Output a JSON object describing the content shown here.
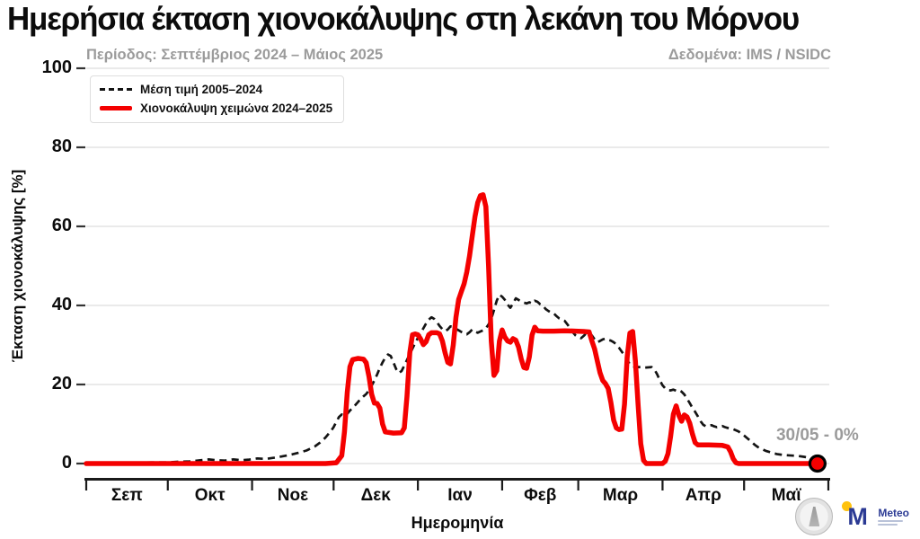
{
  "title": "Ημερήσια έκταση χιονοκάλυψης στη λεκάνη του Μόρνου",
  "subtitle": "Περίοδος: Σεπτέμβριος 2024 – Μάιος 2025",
  "source": "Δεδομένα: IMS / NSIDC",
  "colors": {
    "snow_line": "#f40000",
    "mean_line": "#141414",
    "grid": "#e4e4e4",
    "spine": "#1a1a1a",
    "muted_text": "#9b9b9b",
    "marker_fill": "#f40000",
    "marker_edge": "#000000"
  },
  "logos": {
    "seal_name": "university-seal",
    "meteo_name": "Meteo"
  },
  "chart_data": {
    "type": "line",
    "title": "Ημερήσια έκταση χιονοκάλυψης στη λεκάνη του Μόρνου",
    "xlabel": "Ημερομηνία",
    "ylabel": "Έκταση χιονοκάλυψης [%]",
    "ylim": [
      0,
      100
    ],
    "yticks": [
      0,
      20,
      40,
      60,
      80,
      100
    ],
    "grid": true,
    "legend_position": "upper left",
    "x_unit": "days from 1 Sep 2024",
    "x_months": [
      "Σεπ",
      "Οκτ",
      "Νοε",
      "Δεκ",
      "Ιαν",
      "Φεβ",
      "Μαρ",
      "Απρ",
      "Μαϊ"
    ],
    "month_boundaries_days": [
      0,
      30,
      61,
      91,
      122,
      153,
      181,
      212,
      242,
      273
    ],
    "annotation": {
      "label": "30/05 - 0%",
      "day": 269,
      "value": 0
    },
    "series": [
      {
        "name": "Μέση τιμή 2005–2024",
        "style": "dashed",
        "color": "#141414",
        "points": [
          [
            0,
            0.2
          ],
          [
            6,
            0.15
          ],
          [
            12,
            0.25
          ],
          [
            18,
            0.2
          ],
          [
            24,
            0.3
          ],
          [
            30,
            0.3
          ],
          [
            34,
            0.45
          ],
          [
            38,
            0.55
          ],
          [
            42,
            0.85
          ],
          [
            45,
            1.05
          ],
          [
            48,
            0.85
          ],
          [
            51,
            0.75
          ],
          [
            54,
            1.05
          ],
          [
            57,
            0.85
          ],
          [
            60,
            1.0
          ],
          [
            63,
            1.3
          ],
          [
            66,
            1.15
          ],
          [
            69,
            1.45
          ],
          [
            72,
            1.8
          ],
          [
            75,
            2.2
          ],
          [
            78,
            2.7
          ],
          [
            81,
            3.3
          ],
          [
            84,
            4.3
          ],
          [
            86,
            5.3
          ],
          [
            88,
            6.6
          ],
          [
            90,
            8.2
          ],
          [
            91,
            9.2
          ],
          [
            92,
            10.6
          ],
          [
            93,
            11.8
          ],
          [
            94,
            12.4
          ],
          [
            95,
            12.0
          ],
          [
            96,
            12.6
          ],
          [
            97,
            13.4
          ],
          [
            98,
            14.1
          ],
          [
            99,
            14.8
          ],
          [
            100,
            15.6
          ],
          [
            101,
            16.4
          ],
          [
            102,
            17.0
          ],
          [
            103,
            17.6
          ],
          [
            104,
            18.5
          ],
          [
            105,
            19.7
          ],
          [
            106,
            21.0
          ],
          [
            107,
            22.5
          ],
          [
            108,
            24.2
          ],
          [
            109,
            25.6
          ],
          [
            110,
            26.8
          ],
          [
            111,
            27.6
          ],
          [
            112,
            27.2
          ],
          [
            113,
            25.6
          ],
          [
            114,
            23.9
          ],
          [
            115,
            22.9
          ],
          [
            116,
            23.4
          ],
          [
            117,
            24.8
          ],
          [
            118,
            26.2
          ],
          [
            119,
            27.7
          ],
          [
            120,
            29.1
          ],
          [
            121,
            30.5
          ],
          [
            122,
            31.8
          ],
          [
            123,
            33.0
          ],
          [
            124,
            34.2
          ],
          [
            125,
            35.4
          ],
          [
            126,
            36.4
          ],
          [
            127,
            37.0
          ],
          [
            128,
            36.6
          ],
          [
            129,
            35.8
          ],
          [
            130,
            34.8
          ],
          [
            131,
            34.0
          ],
          [
            132,
            33.5
          ],
          [
            133,
            33.9
          ],
          [
            134,
            34.7
          ],
          [
            135,
            34.6
          ],
          [
            136,
            34.1
          ],
          [
            137,
            33.7
          ],
          [
            138,
            33.3
          ],
          [
            139,
            33.0
          ],
          [
            140,
            32.7
          ],
          [
            141,
            33.2
          ],
          [
            142,
            33.9
          ],
          [
            143,
            33.4
          ],
          [
            144,
            33.1
          ],
          [
            145,
            33.4
          ],
          [
            146,
            33.7
          ],
          [
            147,
            34.2
          ],
          [
            148,
            35.2
          ],
          [
            149,
            36.6
          ],
          [
            150,
            38.8
          ],
          [
            151,
            41.2
          ],
          [
            152,
            42.7
          ],
          [
            153,
            42.2
          ],
          [
            154,
            41.4
          ],
          [
            155,
            40.2
          ],
          [
            156,
            39.4
          ],
          [
            157,
            40.5
          ],
          [
            158,
            41.8
          ],
          [
            159,
            41.4
          ],
          [
            160,
            41.0
          ],
          [
            161,
            40.7
          ],
          [
            162,
            40.5
          ],
          [
            163,
            40.8
          ],
          [
            164,
            40.5
          ],
          [
            165,
            41.2
          ],
          [
            166,
            40.9
          ],
          [
            167,
            40.3
          ],
          [
            168,
            40.0
          ],
          [
            169,
            39.1
          ],
          [
            170,
            38.6
          ],
          [
            171,
            38.2
          ],
          [
            172,
            38.0
          ],
          [
            173,
            37.3
          ],
          [
            174,
            36.7
          ],
          [
            175,
            36.4
          ],
          [
            176,
            36.1
          ],
          [
            177,
            35.2
          ],
          [
            178,
            34.3
          ],
          [
            179,
            33.2
          ],
          [
            180,
            32.4
          ],
          [
            181,
            31.9
          ],
          [
            182,
            31.7
          ],
          [
            183,
            32.3
          ],
          [
            184,
            33.0
          ],
          [
            185,
            33.0
          ],
          [
            186,
            32.4
          ],
          [
            187,
            31.4
          ],
          [
            188,
            30.7
          ],
          [
            189,
            31.0
          ],
          [
            190,
            31.4
          ],
          [
            191,
            31.6
          ],
          [
            192,
            31.3
          ],
          [
            193,
            31.1
          ],
          [
            194,
            30.7
          ],
          [
            195,
            30.1
          ],
          [
            196,
            29.3
          ],
          [
            197,
            28.3
          ],
          [
            198,
            27.3
          ],
          [
            199,
            26.2
          ],
          [
            200,
            25.1
          ],
          [
            201,
            24.6
          ],
          [
            202,
            24.4
          ],
          [
            204,
            24.4
          ],
          [
            206,
            24.3
          ],
          [
            208,
            24.4
          ],
          [
            209,
            23.8
          ],
          [
            210,
            22.6
          ],
          [
            211,
            21.1
          ],
          [
            212,
            19.8
          ],
          [
            213,
            19.0
          ],
          [
            214,
            18.6
          ],
          [
            215,
            18.5
          ],
          [
            216,
            18.7
          ],
          [
            217,
            18.4
          ],
          [
            218,
            18.6
          ],
          [
            219,
            18.2
          ],
          [
            220,
            17.5
          ],
          [
            221,
            16.4
          ],
          [
            222,
            15.3
          ],
          [
            223,
            14.1
          ],
          [
            224,
            13.1
          ],
          [
            225,
            11.9
          ],
          [
            226,
            10.7
          ],
          [
            227,
            9.8
          ],
          [
            228,
            9.4
          ],
          [
            229,
            9.6
          ],
          [
            230,
            9.7
          ],
          [
            231,
            9.4
          ],
          [
            232,
            9.2
          ],
          [
            233,
            9.4
          ],
          [
            234,
            9.5
          ],
          [
            235,
            9.2
          ],
          [
            236,
            9.0
          ],
          [
            237,
            8.9
          ],
          [
            238,
            8.7
          ],
          [
            239,
            8.4
          ],
          [
            240,
            8.1
          ],
          [
            241,
            7.6
          ],
          [
            242,
            7.1
          ],
          [
            243,
            6.5
          ],
          [
            244,
            5.9
          ],
          [
            245,
            5.3
          ],
          [
            246,
            4.7
          ],
          [
            247,
            4.2
          ],
          [
            248,
            3.8
          ],
          [
            249,
            3.5
          ],
          [
            250,
            3.2
          ],
          [
            251,
            3.0
          ],
          [
            252,
            2.8
          ],
          [
            253,
            2.6
          ],
          [
            254,
            2.4
          ],
          [
            256,
            2.2
          ],
          [
            258,
            2.1
          ],
          [
            260,
            2.0
          ],
          [
            262,
            1.9
          ],
          [
            264,
            1.7
          ],
          [
            266,
            1.4
          ],
          [
            268,
            1.1
          ],
          [
            269,
            0.9
          ]
        ]
      },
      {
        "name": "Χιονοκάλυψη χειμώνα 2024–2025",
        "style": "solid",
        "color": "#f40000",
        "points": [
          [
            0,
            0
          ],
          [
            88,
            0
          ],
          [
            92,
            0.2
          ],
          [
            94,
            2
          ],
          [
            95,
            8
          ],
          [
            96,
            18
          ],
          [
            97,
            24.5
          ],
          [
            98,
            26.3
          ],
          [
            100,
            26.6
          ],
          [
            102,
            26.4
          ],
          [
            103,
            25.5
          ],
          [
            104,
            22
          ],
          [
            105,
            17.5
          ],
          [
            106,
            15.3
          ],
          [
            107,
            15.2
          ],
          [
            108,
            14
          ],
          [
            109,
            10
          ],
          [
            110,
            8.0
          ],
          [
            113,
            7.7
          ],
          [
            116,
            7.8
          ],
          [
            117,
            9
          ],
          [
            118,
            17
          ],
          [
            119,
            28
          ],
          [
            120,
            32.6
          ],
          [
            121,
            32.8
          ],
          [
            122,
            32.6
          ],
          [
            123,
            31.5
          ],
          [
            124,
            30.1
          ],
          [
            125,
            30.8
          ],
          [
            126,
            32.6
          ],
          [
            127,
            33.1
          ],
          [
            129,
            33.1
          ],
          [
            130,
            32.8
          ],
          [
            131,
            31
          ],
          [
            132,
            28
          ],
          [
            133,
            25.6
          ],
          [
            134,
            25.2
          ],
          [
            135,
            30
          ],
          [
            136,
            37
          ],
          [
            137,
            41.5
          ],
          [
            138,
            43.5
          ],
          [
            139,
            45.5
          ],
          [
            140,
            48.5
          ],
          [
            141,
            52.5
          ],
          [
            142,
            57.5
          ],
          [
            143,
            62.5
          ],
          [
            144,
            66
          ],
          [
            145,
            67.8
          ],
          [
            146,
            68
          ],
          [
            147,
            65
          ],
          [
            148,
            50
          ],
          [
            149,
            31
          ],
          [
            150,
            22.3
          ],
          [
            151,
            23.5
          ],
          [
            152,
            31
          ],
          [
            153,
            33.8
          ],
          [
            154,
            32
          ],
          [
            155,
            31
          ],
          [
            156,
            30.7
          ],
          [
            157,
            31.6
          ],
          [
            158,
            31.2
          ],
          [
            159,
            29.5
          ],
          [
            160,
            26.5
          ],
          [
            161,
            24.3
          ],
          [
            162,
            24.1
          ],
          [
            163,
            27
          ],
          [
            164,
            32.5
          ],
          [
            165,
            34.5
          ],
          [
            166,
            33.6
          ],
          [
            168,
            33.5
          ],
          [
            172,
            33.5
          ],
          [
            176,
            33.6
          ],
          [
            180,
            33.5
          ],
          [
            183,
            33.4
          ],
          [
            185,
            33.3
          ],
          [
            186,
            31
          ],
          [
            187,
            29
          ],
          [
            188,
            26
          ],
          [
            189,
            23
          ],
          [
            190,
            21
          ],
          [
            191,
            20.2
          ],
          [
            192,
            19
          ],
          [
            193,
            15.5
          ],
          [
            194,
            11
          ],
          [
            195,
            9
          ],
          [
            196,
            8.6
          ],
          [
            197,
            8.7
          ],
          [
            198,
            15
          ],
          [
            199,
            27
          ],
          [
            200,
            33
          ],
          [
            201,
            33.4
          ],
          [
            202,
            26
          ],
          [
            203,
            15
          ],
          [
            204,
            5
          ],
          [
            205,
            0.8
          ],
          [
            206,
            0
          ],
          [
            212,
            0
          ],
          [
            213,
            0.6
          ],
          [
            214,
            2.5
          ],
          [
            215,
            7
          ],
          [
            216,
            12.5
          ],
          [
            217,
            14.6
          ],
          [
            218,
            12.2
          ],
          [
            219,
            10.7
          ],
          [
            220,
            12.3
          ],
          [
            221,
            11.8
          ],
          [
            222,
            10.2
          ],
          [
            223,
            7.5
          ],
          [
            224,
            5.3
          ],
          [
            225,
            4.7
          ],
          [
            229,
            4.7
          ],
          [
            234,
            4.6
          ],
          [
            236,
            4.2
          ],
          [
            237,
            3
          ],
          [
            238,
            1.2
          ],
          [
            239,
            0.2
          ],
          [
            240,
            0
          ],
          [
            269,
            0
          ]
        ]
      }
    ]
  }
}
